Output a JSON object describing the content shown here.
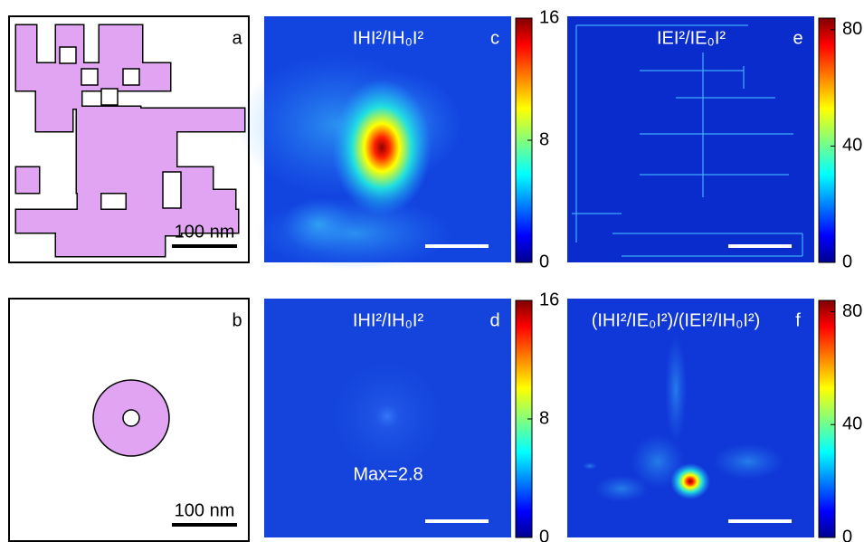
{
  "panels": [
    {
      "label": "a",
      "scale_bar": "100 nm"
    },
    {
      "label": "b",
      "scale_bar": "100 nm"
    }
  ],
  "maps": [
    {
      "label": "c",
      "title": "IHI²/IH₀I²",
      "colorbar": {
        "lim": [
          0,
          16
        ],
        "ticks": [
          0,
          8,
          16
        ]
      }
    },
    {
      "label": "e",
      "title": "IEI²/IE₀I²",
      "colorbar": {
        "lim": [
          0,
          84
        ],
        "ticks": [
          0,
          40,
          80
        ]
      }
    },
    {
      "label": "d",
      "title": "IHI²/IH₀I²",
      "annotation": "Max=2.8",
      "colorbar": {
        "lim": [
          0,
          16
        ],
        "ticks": [
          0,
          8,
          16
        ]
      }
    },
    {
      "label": "f",
      "title": "(IHI²/IE₀I²)/(IEI²/IH₀I²)",
      "colorbar": {
        "lim": [
          0,
          84
        ],
        "ticks": [
          0,
          40,
          80
        ]
      }
    }
  ]
}
